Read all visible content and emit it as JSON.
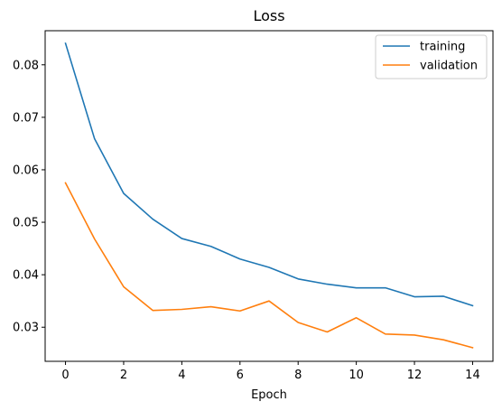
{
  "chart_data": {
    "type": "line",
    "title": "Loss",
    "xlabel": "Epoch",
    "ylabel": "",
    "x": [
      0,
      1,
      2,
      3,
      4,
      5,
      6,
      7,
      8,
      9,
      10,
      11,
      12,
      13,
      14
    ],
    "xlim": [
      -0.7,
      14.7
    ],
    "ylim": [
      0.0235,
      0.0865
    ],
    "xticks": [
      0,
      2,
      4,
      6,
      8,
      10,
      12,
      14
    ],
    "yticks": [
      0.03,
      0.04,
      0.05,
      0.06,
      0.07,
      0.08
    ],
    "xtick_labels": [
      "0",
      "2",
      "4",
      "6",
      "8",
      "10",
      "12",
      "14"
    ],
    "ytick_labels": [
      "0.03",
      "0.04",
      "0.05",
      "0.06",
      "0.07",
      "0.08"
    ],
    "grid": false,
    "legend_position": "top-right",
    "series": [
      {
        "name": "training",
        "color": "#1f77b4",
        "values": [
          0.0841,
          0.0659,
          0.0555,
          0.0506,
          0.0469,
          0.0454,
          0.043,
          0.0414,
          0.0392,
          0.0382,
          0.0375,
          0.0375,
          0.0358,
          0.0359,
          0.0341
        ]
      },
      {
        "name": "validation",
        "color": "#ff7f0e",
        "values": [
          0.0575,
          0.0468,
          0.0377,
          0.0332,
          0.0334,
          0.0339,
          0.0331,
          0.035,
          0.0309,
          0.0291,
          0.0318,
          0.0287,
          0.0285,
          0.0276,
          0.0261
        ]
      }
    ]
  }
}
